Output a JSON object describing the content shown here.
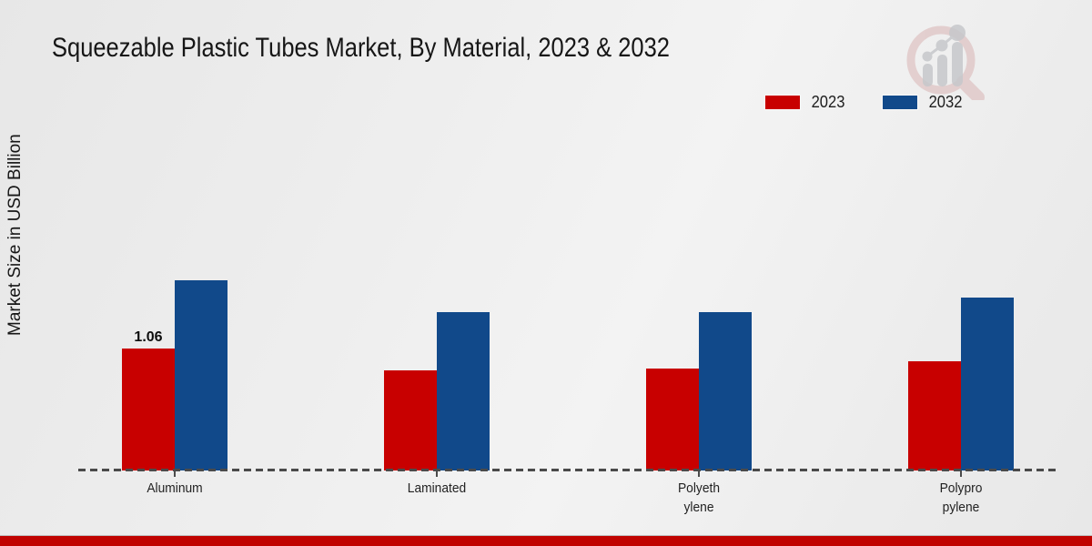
{
  "page": {
    "title": "Squeezable Plastic Tubes Market, By Material, 2023 & 2032",
    "y_axis_label": "Market Size in USD Billion"
  },
  "legend": {
    "items": [
      {
        "label": "2023",
        "color": "#c80000"
      },
      {
        "label": "2032",
        "color": "#11498a"
      }
    ]
  },
  "colors": {
    "bar_2023": "#c80000",
    "bar_2032": "#11498a",
    "footer_strip": "#c00300",
    "baseline": "#4a4a4a"
  },
  "chart_data": {
    "type": "bar",
    "title": "Squeezable Plastic Tubes Market, By Material, 2023 & 2032",
    "ylabel": "Market Size in USD Billion",
    "xlabel": "",
    "categories": [
      "Aluminum",
      "Laminated",
      "Polyethylene",
      "Polypropylene"
    ],
    "category_label_lines": [
      [
        "Aluminum"
      ],
      [
        "Laminated"
      ],
      [
        "Polyeth",
        "ylene"
      ],
      [
        "Polypro",
        "pylene"
      ]
    ],
    "series": [
      {
        "name": "2023",
        "color": "#c80000",
        "values": [
          1.06,
          0.87,
          0.89,
          0.95
        ]
      },
      {
        "name": "2032",
        "color": "#11498a",
        "values": [
          1.65,
          1.38,
          1.38,
          1.5
        ]
      }
    ],
    "data_labels": [
      {
        "series": "2023",
        "category": "Aluminum",
        "text": "1.06"
      }
    ],
    "ylim": [
      0,
      2.0
    ],
    "grid": false,
    "y_axis_ticks_visible": false,
    "legend_position": "top-right",
    "baseline_style": "dashed"
  }
}
